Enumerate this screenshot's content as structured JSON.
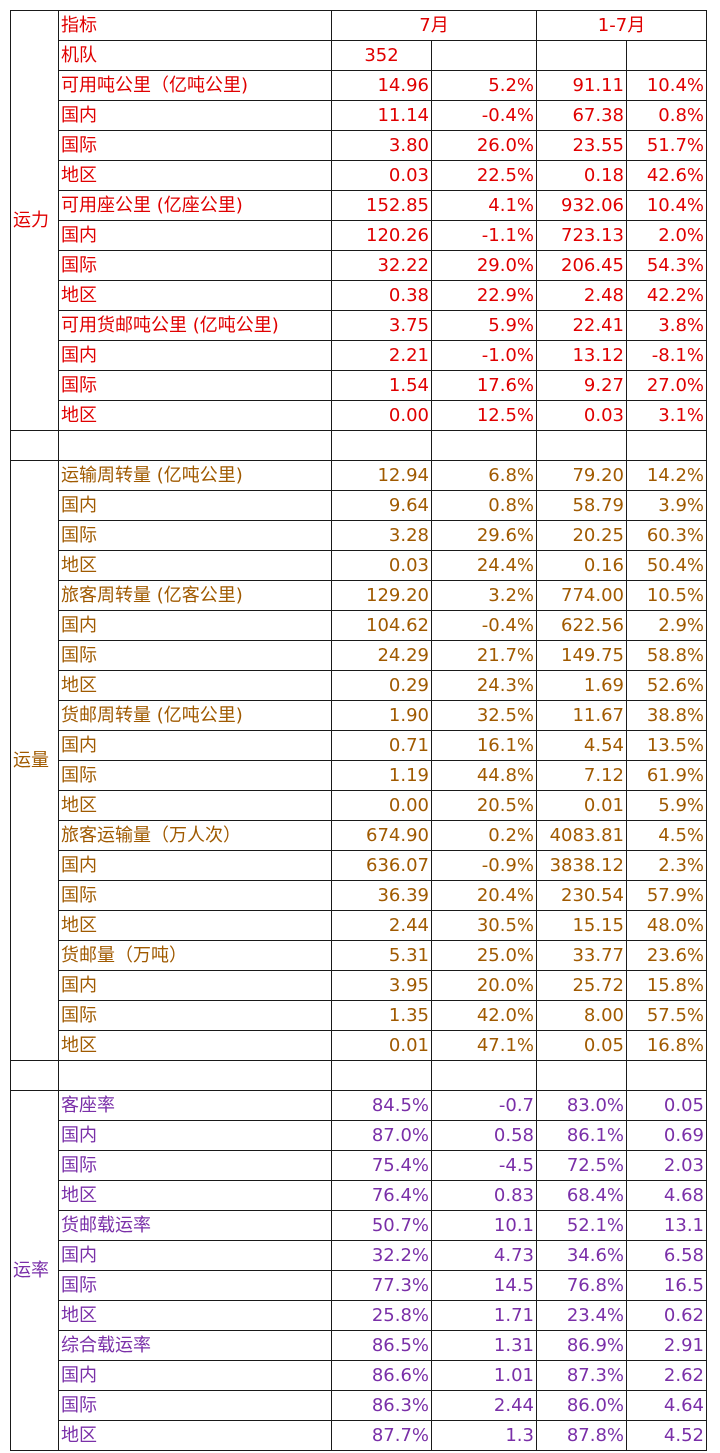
{
  "colors": {
    "capacity": "#e00000",
    "traffic": "#a05a00",
    "rates": "#7a2fa8",
    "border": "#1a1a1a"
  },
  "header": {
    "indicator": "指标",
    "period1": "7月",
    "period2": "1-7月"
  },
  "fleet": {
    "label": "机队",
    "value": "352"
  },
  "sections": [
    {
      "key": "capacity",
      "category": "运力",
      "rows": [
        [
          "可用吨公里（亿吨公里)",
          "14.96",
          "5.2%",
          "91.11",
          "10.4%"
        ],
        [
          "国内",
          "11.14",
          "-0.4%",
          "67.38",
          "0.8%"
        ],
        [
          "国际",
          "3.80",
          "26.0%",
          "23.55",
          "51.7%"
        ],
        [
          "地区",
          "0.03",
          "22.5%",
          "0.18",
          "42.6%"
        ],
        [
          "可用座公里 (亿座公里)",
          "152.85",
          "4.1%",
          "932.06",
          "10.4%"
        ],
        [
          "国内",
          "120.26",
          "-1.1%",
          "723.13",
          "2.0%"
        ],
        [
          "国际",
          "32.22",
          "29.0%",
          "206.45",
          "54.3%"
        ],
        [
          "地区",
          "0.38",
          "22.9%",
          "2.48",
          "42.2%"
        ],
        [
          "可用货邮吨公里 (亿吨公里)",
          "3.75",
          "5.9%",
          "22.41",
          "3.8%"
        ],
        [
          "国内",
          "2.21",
          "-1.0%",
          "13.12",
          "-8.1%"
        ],
        [
          "国际",
          "1.54",
          "17.6%",
          "9.27",
          "27.0%"
        ],
        [
          "地区",
          "0.00",
          "12.5%",
          "0.03",
          "3.1%"
        ]
      ]
    },
    {
      "key": "traffic",
      "category": "运量",
      "rows": [
        [
          "运输周转量 (亿吨公里)",
          "12.94",
          "6.8%",
          "79.20",
          "14.2%"
        ],
        [
          "国内",
          "9.64",
          "0.8%",
          "58.79",
          "3.9%"
        ],
        [
          "国际",
          "3.28",
          "29.6%",
          "20.25",
          "60.3%"
        ],
        [
          "地区",
          "0.03",
          "24.4%",
          "0.16",
          "50.4%"
        ],
        [
          "旅客周转量 (亿客公里)",
          "129.20",
          "3.2%",
          "774.00",
          "10.5%"
        ],
        [
          "国内",
          "104.62",
          "-0.4%",
          "622.56",
          "2.9%"
        ],
        [
          "国际",
          "24.29",
          "21.7%",
          "149.75",
          "58.8%"
        ],
        [
          "地区",
          "0.29",
          "24.3%",
          "1.69",
          "52.6%"
        ],
        [
          "货邮周转量 (亿吨公里)",
          "1.90",
          "32.5%",
          "11.67",
          "38.8%"
        ],
        [
          "国内",
          "0.71",
          "16.1%",
          "4.54",
          "13.5%"
        ],
        [
          "国际",
          "1.19",
          "44.8%",
          "7.12",
          "61.9%"
        ],
        [
          "地区",
          "0.00",
          "20.5%",
          "0.01",
          "5.9%"
        ],
        [
          "旅客运输量（万人次）",
          "674.90",
          "0.2%",
          "4083.81",
          "4.5%"
        ],
        [
          "国内",
          "636.07",
          "-0.9%",
          "3838.12",
          "2.3%"
        ],
        [
          "国际",
          "36.39",
          "20.4%",
          "230.54",
          "57.9%"
        ],
        [
          "地区",
          "2.44",
          "30.5%",
          "15.15",
          "48.0%"
        ],
        [
          "货邮量（万吨）",
          "5.31",
          "25.0%",
          "33.77",
          "23.6%"
        ],
        [
          "国内",
          "3.95",
          "20.0%",
          "25.72",
          "15.8%"
        ],
        [
          "国际",
          "1.35",
          "42.0%",
          "8.00",
          "57.5%"
        ],
        [
          "地区",
          "0.01",
          "47.1%",
          "0.05",
          "16.8%"
        ]
      ]
    },
    {
      "key": "rates",
      "category": "运率",
      "rows": [
        [
          "客座率",
          "84.5%",
          "-0.7",
          "83.0%",
          "0.05"
        ],
        [
          "国内",
          "87.0%",
          "0.58",
          "86.1%",
          "0.69"
        ],
        [
          "国际",
          "75.4%",
          "-4.5",
          "72.5%",
          "2.03"
        ],
        [
          "地区",
          "76.4%",
          "0.83",
          "68.4%",
          "4.68"
        ],
        [
          "货邮载运率",
          "50.7%",
          "10.1",
          "52.1%",
          "13.1"
        ],
        [
          "国内",
          "32.2%",
          "4.73",
          "34.6%",
          "6.58"
        ],
        [
          "国际",
          "77.3%",
          "14.5",
          "76.8%",
          "16.5"
        ],
        [
          "地区",
          "25.8%",
          "1.71",
          "23.4%",
          "0.62"
        ],
        [
          "综合载运率",
          "86.5%",
          "1.31",
          "86.9%",
          "2.91"
        ],
        [
          "国内",
          "86.6%",
          "1.01",
          "87.3%",
          "2.62"
        ],
        [
          "国际",
          "86.3%",
          "2.44",
          "86.0%",
          "4.64"
        ],
        [
          "地区",
          "87.7%",
          "1.3",
          "87.8%",
          "4.52"
        ]
      ]
    }
  ]
}
